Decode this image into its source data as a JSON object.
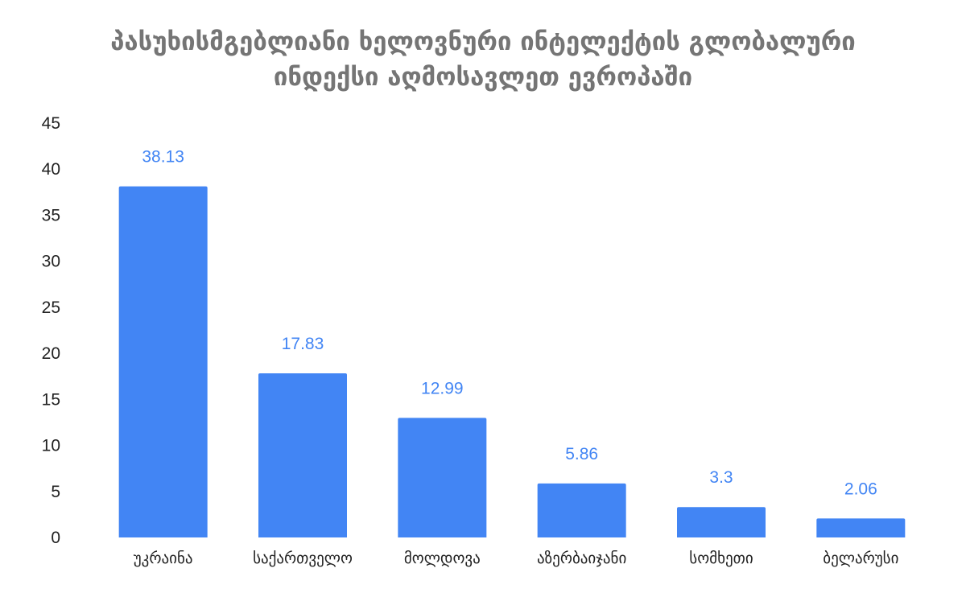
{
  "chart_data": {
    "type": "bar",
    "title_lines": [
      "პასუხისმგებლიანი ხელოვნური ინტელექტის გლობალური",
      "ინდექსი აღმოსავლეთ ევროპაში"
    ],
    "categories": [
      "უკრაინა",
      "საქართველო",
      "მოლდოვა",
      "აზერბაიჯანი",
      "სომხეთი",
      "ბელარუსი"
    ],
    "values": [
      38.13,
      17.83,
      12.99,
      5.86,
      3.3,
      2.06
    ],
    "data_labels": [
      "38.13",
      "17.83",
      "12.99",
      "5.86",
      "3.3",
      "2.06"
    ],
    "y_ticks": [
      "0",
      "5",
      "10",
      "15",
      "20",
      "25",
      "30",
      "35",
      "40",
      "45"
    ],
    "ylim": [
      0,
      45
    ],
    "grid": false,
    "xlabel": "",
    "ylabel": "",
    "colors": {
      "bar": "#4285f4",
      "data_label": "#4285f4",
      "title": "#757575",
      "text": "#222222"
    }
  }
}
